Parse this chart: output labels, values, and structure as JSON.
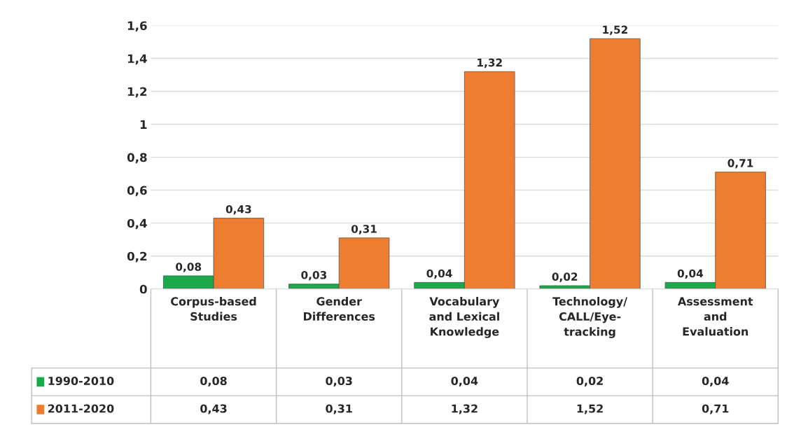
{
  "chart_data": {
    "type": "bar",
    "categories": [
      "Corpus-based Studies",
      "Gender Differences",
      "Vocabulary and Lexical Knowledge",
      "Technology/CALL/Eye-tracking",
      "Assessment and Evaluation"
    ],
    "series": [
      {
        "name": "1990-2010",
        "color": "#1aa84a",
        "values": [
          0.08,
          0.03,
          0.04,
          0.02,
          0.04
        ],
        "value_labels": [
          "0,08",
          "0,03",
          "0,04",
          "0,02",
          "0,04"
        ]
      },
      {
        "name": "2011-2020",
        "color": "#ed7d31",
        "values": [
          0.43,
          0.31,
          1.32,
          1.52,
          0.71
        ],
        "value_labels": [
          "0,43",
          "0,31",
          "1,32",
          "1,52",
          "0,71"
        ]
      }
    ],
    "ylim": [
      0,
      1.6
    ],
    "yticks": [
      0,
      {
        "value": 0.2,
        "label": "0,2"
      },
      {
        "value": 0.4,
        "label": "0,4"
      },
      {
        "value": 0.6,
        "label": "0,6"
      },
      {
        "value": 0.8,
        "label": "0,8"
      },
      1,
      {
        "value": 1.2,
        "label": "1,2"
      },
      {
        "value": 1.4,
        "label": "1,4"
      },
      {
        "value": 1.6,
        "label": "1,6"
      }
    ],
    "grid": "y",
    "legend": "bottom"
  }
}
